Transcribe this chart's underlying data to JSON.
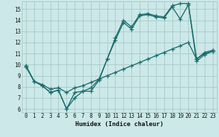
{
  "xlabel": "Humidex (Indice chaleur)",
  "background_color": "#cce8e8",
  "grid_color": "#aacccc",
  "line_color": "#1a6b6b",
  "xlim": [
    -0.5,
    23.5
  ],
  "ylim": [
    5.7,
    15.7
  ],
  "xticks": [
    0,
    1,
    2,
    3,
    4,
    5,
    6,
    7,
    8,
    9,
    10,
    11,
    12,
    13,
    14,
    15,
    16,
    17,
    18,
    19,
    20,
    21,
    22,
    23
  ],
  "yticks": [
    6,
    7,
    8,
    9,
    10,
    11,
    12,
    13,
    14,
    15
  ],
  "line1_x": [
    0,
    1,
    2,
    3,
    4,
    5,
    6,
    7,
    8,
    9,
    10,
    11,
    12,
    13,
    14,
    15,
    16,
    17,
    18,
    19,
    20,
    21,
    22,
    23
  ],
  "line1_y": [
    9.9,
    8.5,
    8.1,
    7.5,
    7.7,
    6.0,
    7.0,
    7.6,
    7.6,
    8.6,
    10.5,
    12.2,
    13.8,
    13.2,
    14.4,
    14.5,
    14.3,
    14.2,
    15.2,
    14.1,
    15.4,
    10.3,
    10.9,
    11.2
  ],
  "line2_x": [
    0,
    1,
    2,
    3,
    4,
    5,
    6,
    7,
    8,
    9,
    10,
    11,
    12,
    13,
    14,
    15,
    16,
    17,
    18,
    19,
    20,
    21,
    22,
    23
  ],
  "line2_y": [
    9.9,
    8.5,
    8.1,
    7.5,
    7.7,
    6.0,
    7.5,
    7.6,
    7.9,
    8.7,
    10.5,
    12.4,
    14.0,
    13.4,
    14.5,
    14.6,
    14.4,
    14.3,
    15.3,
    15.5,
    15.5,
    10.5,
    11.1,
    11.3
  ],
  "line3_x": [
    0,
    1,
    2,
    3,
    4,
    5,
    6,
    7,
    8,
    9,
    10,
    11,
    12,
    13,
    14,
    15,
    16,
    17,
    18,
    19,
    20,
    21,
    22,
    23
  ],
  "line3_y": [
    9.8,
    8.5,
    8.2,
    7.8,
    7.9,
    7.5,
    7.9,
    8.1,
    8.4,
    8.7,
    9.0,
    9.3,
    9.6,
    9.9,
    10.2,
    10.5,
    10.8,
    11.1,
    11.4,
    11.7,
    12.0,
    10.5,
    11.0,
    11.2
  ],
  "marker_size": 4,
  "line_width": 1.0
}
